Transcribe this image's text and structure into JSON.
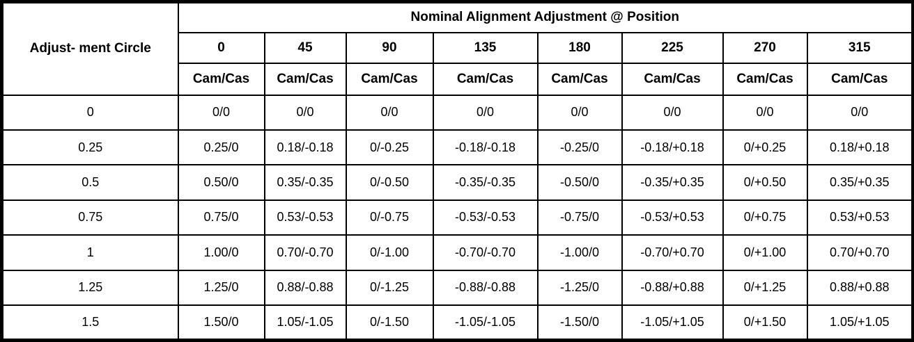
{
  "table": {
    "title": "Nominal Alignment Adjustment @ Position",
    "row_header_label": "Adjust- ment Circle",
    "positions": [
      "0",
      "45",
      "90",
      "135",
      "180",
      "225",
      "270",
      "315"
    ],
    "subheaders": [
      "Cam/Cas",
      "Cam/Cas",
      "Cam/Cas",
      "Cam/Cas",
      "Cam/Cas",
      "Cam/Cas",
      "Cam/Cas",
      "Cam/Cas"
    ],
    "rows": [
      {
        "circle": "0",
        "values": [
          "0/0",
          "0/0",
          "0/0",
          "0/0",
          "0/0",
          "0/0",
          "0/0",
          "0/0"
        ]
      },
      {
        "circle": "0.25",
        "values": [
          "0.25/0",
          "0.18/-0.18",
          "0/-0.25",
          "-0.18/-0.18",
          "-0.25/0",
          "-0.18/+0.18",
          "0/+0.25",
          "0.18/+0.18"
        ]
      },
      {
        "circle": "0.5",
        "values": [
          "0.50/0",
          "0.35/-0.35",
          "0/-0.50",
          "-0.35/-0.35",
          "-0.50/0",
          "-0.35/+0.35",
          "0/+0.50",
          "0.35/+0.35"
        ]
      },
      {
        "circle": "0.75",
        "values": [
          "0.75/0",
          "0.53/-0.53",
          "0/-0.75",
          "-0.53/-0.53",
          "-0.75/0",
          "-0.53/+0.53",
          "0/+0.75",
          "0.53/+0.53"
        ]
      },
      {
        "circle": "1",
        "values": [
          "1.00/0",
          "0.70/-0.70",
          "0/-1.00",
          "-0.70/-0.70",
          "-1.00/0",
          "-0.70/+0.70",
          "0/+1.00",
          "0.70/+0.70"
        ]
      },
      {
        "circle": "1.25",
        "values": [
          "1.25/0",
          "0.88/-0.88",
          "0/-1.25",
          "-0.88/-0.88",
          "-1.25/0",
          "-0.88/+0.88",
          "0/+1.25",
          "0.88/+0.88"
        ]
      },
      {
        "circle": "1.5",
        "values": [
          "1.50/0",
          "1.05/-1.05",
          "0/-1.50",
          "-1.05/-1.05",
          "-1.50/0",
          "-1.05/+1.05",
          "0/+1.50",
          "1.05/+1.05"
        ]
      }
    ],
    "colors": {
      "border": "#000000",
      "text": "#000000",
      "background": "#ffffff"
    }
  }
}
